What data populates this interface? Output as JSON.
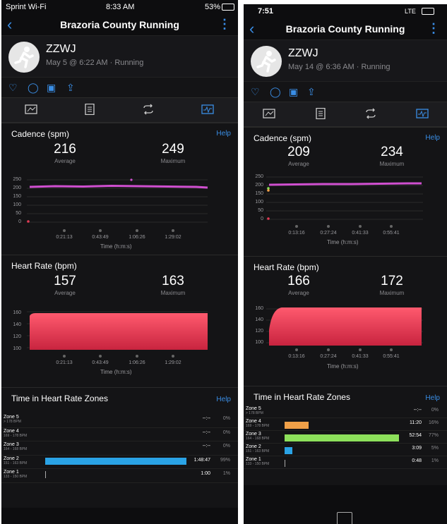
{
  "colors": {
    "accent": "#3a8ee6",
    "cadence": "#d04fd0",
    "hr_fill": "#e23b55",
    "z2": "#2aa3e6",
    "z3": "#8de05b",
    "z4": "#f0a048"
  },
  "phone1": {
    "status": {
      "carrier": "Sprint Wi-Fi",
      "time": "8:33 AM",
      "battery": "53%"
    },
    "title": "Brazoria County Running",
    "user": "ZZWJ",
    "subtitle": "May 5 @ 6:22 AM · Running",
    "cadence": {
      "title": "Cadence (spm)",
      "help": "Help",
      "avg": "216",
      "avg_label": "Average",
      "max": "249",
      "max_label": "Maximum",
      "yticks": [
        "250",
        "200",
        "150",
        "100",
        "50",
        "0"
      ],
      "xticks": [
        "0:21:13",
        "0:43:49",
        "1:06:26",
        "1:29:02"
      ],
      "xtitle": "Time (h:m:s)"
    },
    "hr": {
      "title": "Heart Rate (bpm)",
      "avg": "157",
      "avg_label": "Average",
      "max": "163",
      "max_label": "Maximum",
      "yticks": [
        "160",
        "140",
        "120",
        "100"
      ],
      "xticks": [
        "0:21:13",
        "0:43:49",
        "1:06:26",
        "1:29:02"
      ],
      "xtitle": "Time (h:m:s)"
    },
    "zones": {
      "title": "Time in Heart Rate Zones",
      "help": "Help",
      "items": [
        {
          "name": "Zone 5",
          "range": "> 178 BPM",
          "time": "--:--",
          "pct": "0%",
          "frac": 0
        },
        {
          "name": "Zone 4",
          "range": "169 - 178 BPM",
          "time": "--:--",
          "pct": "0%",
          "frac": 0
        },
        {
          "name": "Zone 3",
          "range": "164 - 168 BPM",
          "time": "--:--",
          "pct": "0%",
          "frac": 0
        },
        {
          "name": "Zone 2",
          "range": "151 - 163 BPM",
          "time": "1:48:47",
          "pct": "99%",
          "frac": 0.99
        },
        {
          "name": "Zone 1",
          "range": "133 - 150 BPM",
          "time": "1:00",
          "pct": "1%",
          "frac": 0.01
        }
      ]
    }
  },
  "phone2": {
    "status": {
      "time": "7:51",
      "network": "LTE"
    },
    "title": "Brazoria County Running",
    "user": "ZZWJ",
    "subtitle": "May 14 @ 6:36 AM · Running",
    "cadence": {
      "title": "Cadence (spm)",
      "help": "Help",
      "avg": "209",
      "avg_label": "Average",
      "max": "234",
      "max_label": "Maximum",
      "yticks": [
        "250",
        "200",
        "150",
        "100",
        "50",
        "0"
      ],
      "xticks": [
        "0:13:16",
        "0:27:24",
        "0:41:33",
        "0:55:41"
      ],
      "xtitle": "Time (h:m:s)"
    },
    "hr": {
      "title": "Heart Rate (bpm)",
      "avg": "166",
      "avg_label": "Average",
      "max": "172",
      "max_label": "Maximum",
      "yticks": [
        "160",
        "140",
        "120",
        "100"
      ],
      "xticks": [
        "0:13:16",
        "0:27:24",
        "0:41:33",
        "0:55:41"
      ],
      "xtitle": "Time (h:m:s)"
    },
    "zones": {
      "title": "Time in Heart Rate Zones",
      "help": "Help",
      "items": [
        {
          "name": "Zone 5",
          "range": "> 178 BPM",
          "time": "--:--",
          "pct": "0%",
          "frac": 0
        },
        {
          "name": "Zone 4",
          "range": "169 - 178 BPM",
          "time": "11:20",
          "pct": "16%",
          "frac": 0.16
        },
        {
          "name": "Zone 3",
          "range": "164 - 168 BPM",
          "time": "52:54",
          "pct": "77%",
          "frac": 0.77
        },
        {
          "name": "Zone 2",
          "range": "151 - 163 BPM",
          "time": "3:09",
          "pct": "5%",
          "frac": 0.05
        },
        {
          "name": "Zone 1",
          "range": "133 - 150 BPM",
          "time": "0:48",
          "pct": "1%",
          "frac": 0.01
        }
      ]
    }
  }
}
